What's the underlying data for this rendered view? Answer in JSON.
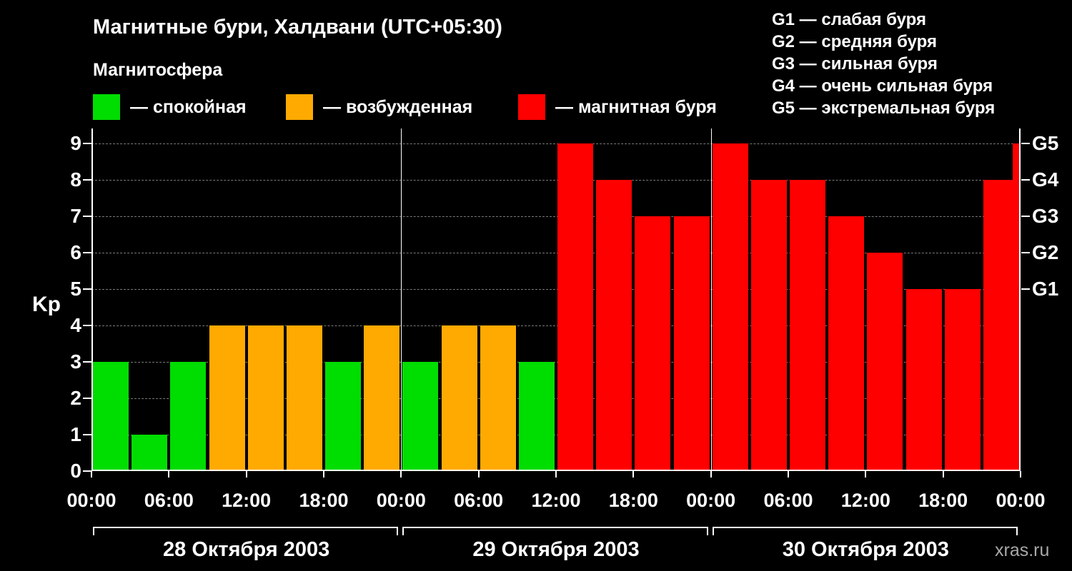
{
  "header": {
    "title": "Магнитные бури, Халдвани (UTC+05:30)",
    "legend_title": "Магнитосфера"
  },
  "legend": [
    {
      "label": "— спокойная",
      "color": "#00dd00"
    },
    {
      "label": "— возбужденная",
      "color": "#ffaa00"
    },
    {
      "label": "— магнитная буря",
      "color": "#ff0000"
    }
  ],
  "g_legend": [
    "G1 — слабая буря",
    "G2 — средняя буря",
    "G3 — сильная буря",
    "G4 — очень сильная буря",
    "G5 — экстремальная буря"
  ],
  "watermark": "xras.ru",
  "chart_data": {
    "type": "bar",
    "title": "Магнитные бури, Халдвани (UTC+05:30)",
    "ylabel": "Kp",
    "xlabel": "",
    "ylim": [
      0,
      9
    ],
    "y_ticks": [
      0,
      1,
      2,
      3,
      4,
      5,
      6,
      7,
      8,
      9
    ],
    "right_axis": [
      {
        "label": "G1",
        "kp": 5
      },
      {
        "label": "G2",
        "kp": 6
      },
      {
        "label": "G3",
        "kp": 7
      },
      {
        "label": "G4",
        "kp": 8
      },
      {
        "label": "G5",
        "kp": 9
      }
    ],
    "x_tick_labels": [
      "00:00",
      "06:00",
      "12:00",
      "18:00",
      "00:00",
      "06:00",
      "12:00",
      "18:00",
      "00:00",
      "06:00",
      "12:00",
      "18:00",
      "00:00"
    ],
    "interval_hours": 3,
    "days": [
      {
        "date": "28 Октября 2003",
        "values": [
          3,
          1,
          3,
          4,
          4,
          4,
          3,
          4
        ]
      },
      {
        "date": "29 Октября 2003",
        "values": [
          3,
          4,
          4,
          3,
          9,
          8,
          7,
          7
        ]
      },
      {
        "date": "30 Октября 2003",
        "values": [
          9,
          8,
          8,
          7,
          6,
          5,
          5,
          8
        ]
      }
    ],
    "partial_bar_value": 9,
    "color_rules": {
      "quiet_max": 3,
      "active_max": 4
    },
    "colors": {
      "quiet": "#00dd00",
      "active": "#ffaa00",
      "storm": "#ff0000",
      "grid": "#7a7a7a",
      "axis": "#ffffff",
      "background": "#000000",
      "watermark": "#a8a8a8"
    },
    "grid": "horizontal-dashed",
    "legend_position": "top-left"
  }
}
